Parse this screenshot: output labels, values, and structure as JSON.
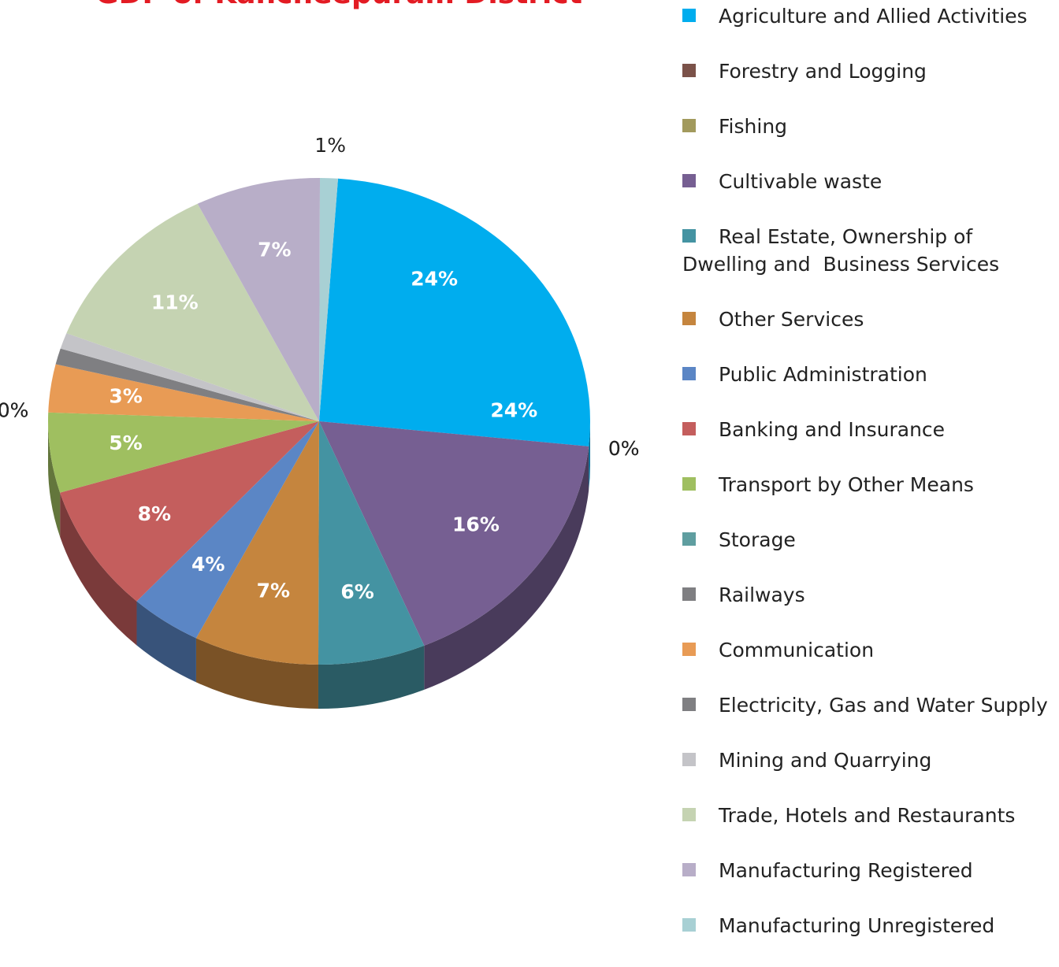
{
  "chart_data": {
    "type": "pie",
    "title": "GDP of Kancheepuram District",
    "categories": [
      "Agriculture and Allied Activities",
      "Forestry and Logging",
      "Fishing",
      "Cultivable waste",
      "Real Estate, Ownership of Dwelling and  Business Services",
      "Other Services",
      "Public Administration",
      "Banking and Insurance",
      "Transport by Other Means",
      "Storage",
      "Railways",
      "Communication",
      "Electricity, Gas and Water Supply",
      "Mining and Quarrying",
      "Trade, Hotels and Restaurants",
      "Manufacturing Registered",
      "Manufacturing Unregistered"
    ],
    "values": [
      24,
      0,
      0,
      16,
      6,
      7,
      4,
      8,
      5,
      0,
      0,
      3,
      1,
      1,
      11,
      7,
      1
    ],
    "value_labels": [
      "24%",
      "0%",
      "0%",
      "16%",
      "6%",
      "7%",
      "4%",
      "8%",
      "5%",
      "0%",
      "0%",
      "3%",
      null,
      null,
      "11%",
      "7%",
      "1%"
    ],
    "colors": [
      "#00adee",
      "#7b5249",
      "#a29a5d",
      "#765f92",
      "#4493a2",
      "#c5853e",
      "#5b86c5",
      "#c45e5d",
      "#9fbf60",
      "#5f9ea0",
      "#7f7f82",
      "#e89b55",
      "#7f7f82",
      "#c4c4c8",
      "#c5d3b2",
      "#b8aec8",
      "#a8d0d4"
    ]
  }
}
